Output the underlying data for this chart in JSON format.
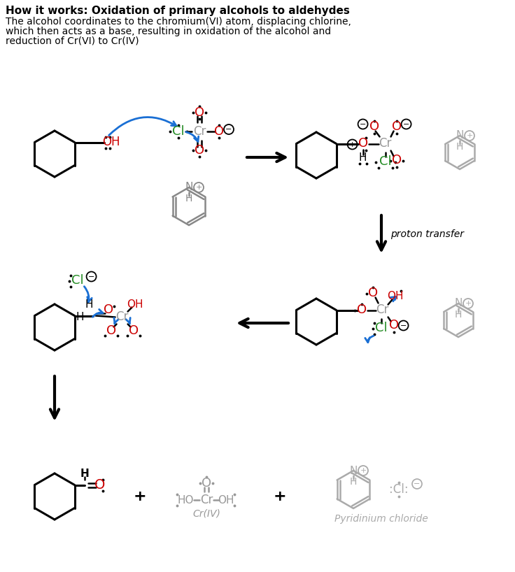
{
  "title_bold": "How it works: Oxidation of primary alcohols to aldehydes",
  "subtitle_line1": "The alcohol coordinates to the chromium(VI) atom, displacing chlorine,",
  "subtitle_line2": "which then acts as a base, resulting in oxidation of the alcohol and",
  "subtitle_line3": "reduction of Cr(VI) to Cr(IV)",
  "bg_color": "#ffffff",
  "text_color": "#000000",
  "red_color": "#cc0000",
  "green_color": "#228B22",
  "blue_color": "#1a6fd4",
  "gray_color": "#aaaaaa",
  "gray_dark": "#888888",
  "cr_color": "#999999",
  "figsize": [
    7.36,
    8.18
  ],
  "dpi": 100
}
